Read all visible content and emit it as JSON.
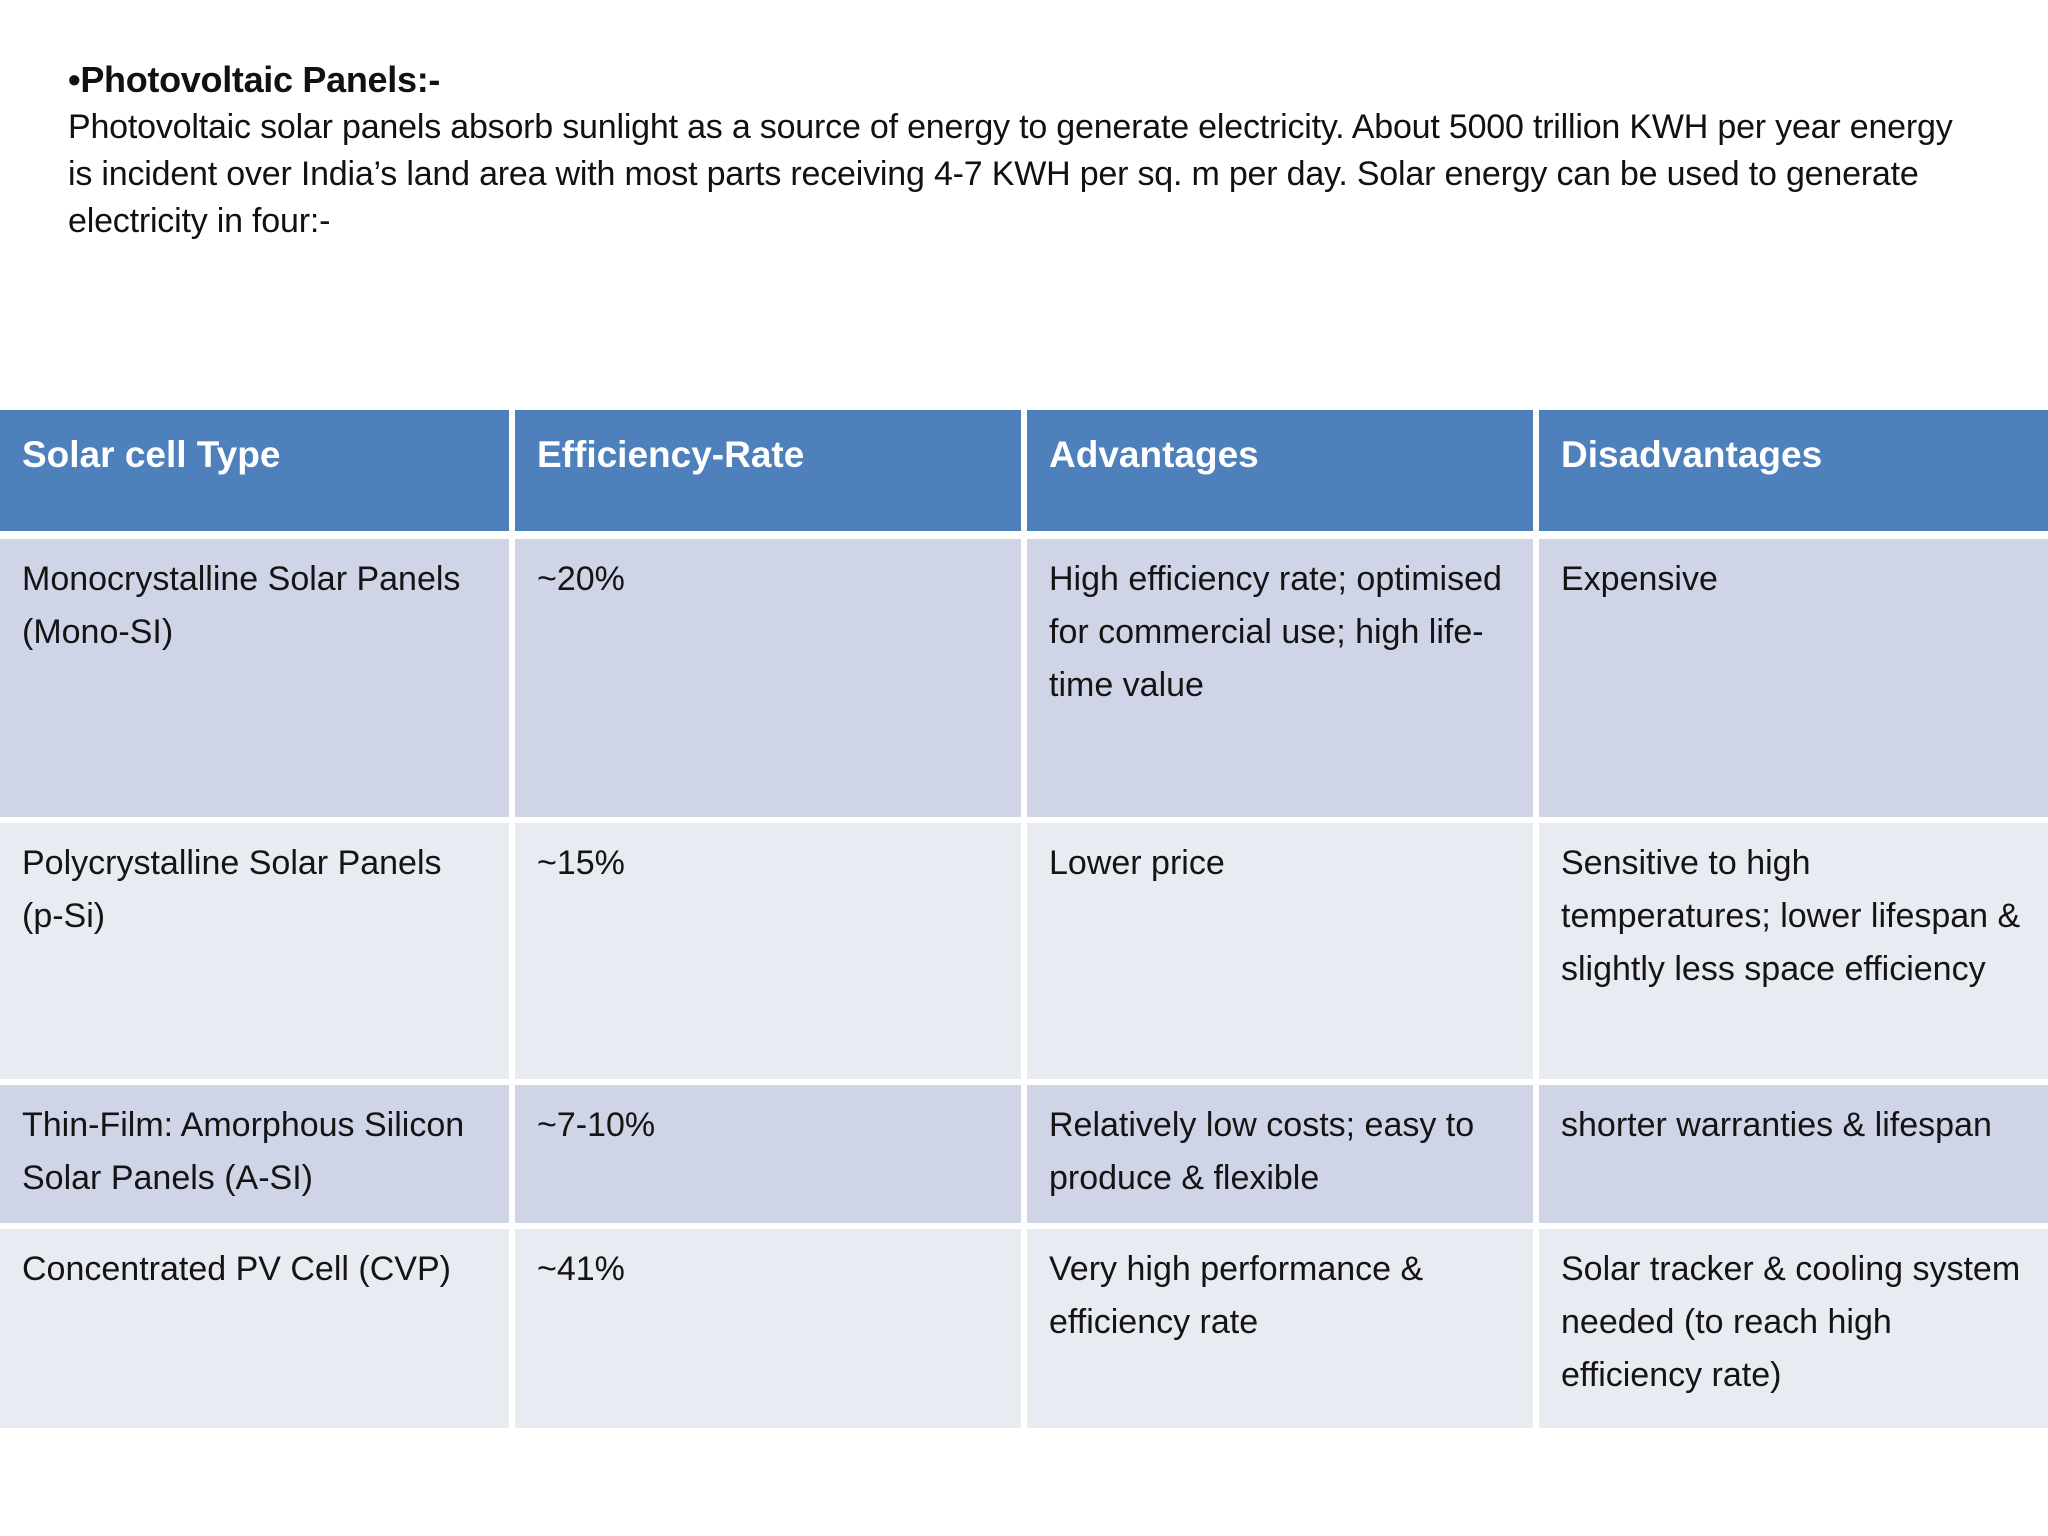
{
  "intro": {
    "bullet": "•",
    "title": "Photovoltaic Panels:-",
    "body": "Photovoltaic solar panels absorb sunlight as a source of energy to generate electricity. About 5000 trillion KWH per year energy is incident over India’s land area with most parts receiving 4-7 KWH per sq. m per day. Solar energy can be used to generate electricity in four:-"
  },
  "table": {
    "headers": [
      "Solar cell Type",
      "Efficiency-Rate",
      "Advantages",
      "Disadvantages"
    ],
    "rows": [
      [
        "Monocrystalline Solar Panels (Mono-SI)",
        "~20%",
        "High efficiency rate; optimised for commercial use; high life-time value",
        "Expensive"
      ],
      [
        "Polycrystalline Solar Panels (p-Si)",
        "~15%",
        "Lower price",
        "Sensitive to high temperatures; lower lifespan & slightly less space efficiency"
      ],
      [
        "Thin-Film: Amorphous Silicon Solar Panels (A-SI)",
        "~7-10%",
        "Relatively low costs; easy to produce & flexible",
        "shorter warranties & lifespan"
      ],
      [
        "Concentrated PV Cell (CVP)",
        "~41%",
        "Very high performance & efficiency rate",
        "Solar tracker & cooling system needed (to reach high efficiency rate)"
      ]
    ]
  },
  "colors": {
    "header_bg": "#4E80BC",
    "header_text": "#FFFFFF",
    "row_band_dark": "#CFD5E6",
    "row_band_light": "#E9EBF3",
    "body_text": "#141414"
  }
}
